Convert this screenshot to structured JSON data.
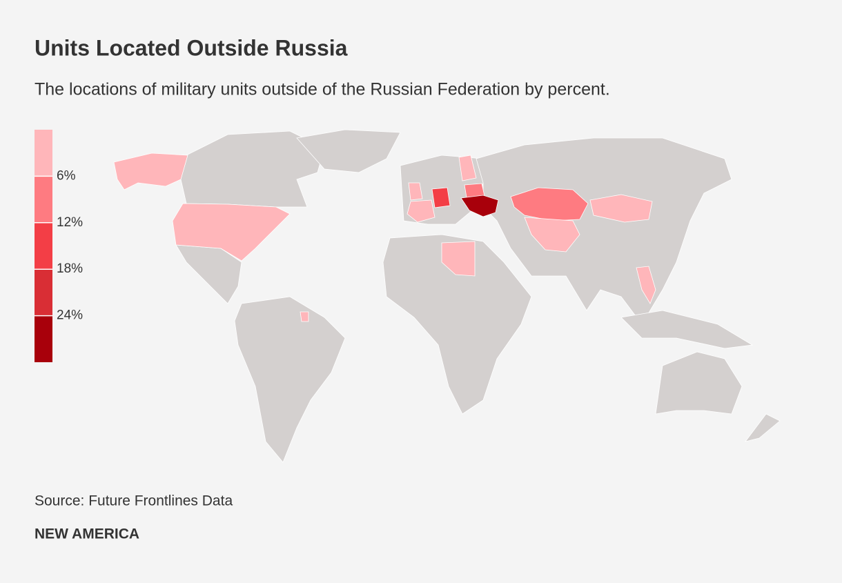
{
  "chart_data": {
    "type": "choropleth",
    "title": "Units Located Outside Russia",
    "subtitle": "The locations of military units outside of the Russian Federation by percent.",
    "source": "Source: Future Frontlines Data",
    "brand": "NEW AMERICA",
    "legend": {
      "range": [
        0,
        30
      ],
      "ticks": [
        {
          "value": 6,
          "label": "6%"
        },
        {
          "value": 12,
          "label": "12%"
        },
        {
          "value": 18,
          "label": "18%"
        },
        {
          "value": 24,
          "label": "24%"
        }
      ],
      "colors": [
        "#ffb6ba",
        "#fe7b81",
        "#f33e46",
        "#d92e35",
        "#a8000b"
      ]
    },
    "land_color": "#d4d0cf"
  }
}
